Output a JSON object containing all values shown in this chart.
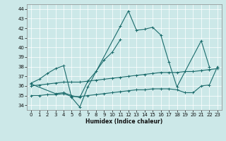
{
  "xlabel": "Humidex (Indice chaleur)",
  "bg_color": "#cce8e8",
  "line_color": "#1a6b6b",
  "xlim": [
    -0.5,
    23.5
  ],
  "ylim": [
    33.5,
    44.5
  ],
  "yticks": [
    34,
    35,
    36,
    37,
    38,
    39,
    40,
    41,
    42,
    43,
    44
  ],
  "xticks": [
    0,
    1,
    2,
    3,
    4,
    5,
    6,
    7,
    8,
    9,
    10,
    11,
    12,
    13,
    14,
    15,
    16,
    17,
    18,
    19,
    20,
    21,
    22,
    23
  ],
  "line0_x": [
    0,
    1,
    2,
    3,
    4,
    5,
    6,
    7,
    11,
    12,
    13,
    14,
    15,
    16,
    17,
    18,
    21,
    22
  ],
  "line0_y": [
    36.3,
    36.7,
    37.3,
    37.8,
    38.1,
    34.8,
    33.8,
    35.9,
    42.2,
    43.8,
    41.8,
    41.9,
    42.1,
    41.3,
    38.5,
    35.9,
    40.7,
    38.0
  ],
  "line1_x": [
    0,
    3,
    4,
    5,
    6,
    7,
    8,
    9,
    10,
    11
  ],
  "line1_y": [
    36.2,
    35.2,
    35.3,
    35.0,
    34.8,
    36.5,
    37.5,
    38.7,
    39.5,
    40.8
  ],
  "line2_x": [
    0,
    1,
    2,
    3,
    4,
    5,
    6,
    7,
    8,
    9,
    10,
    11,
    12,
    13,
    14,
    15,
    16,
    17,
    18,
    19,
    20,
    21,
    22,
    23
  ],
  "line2_y": [
    36.0,
    36.1,
    36.2,
    36.3,
    36.4,
    36.4,
    36.4,
    36.5,
    36.6,
    36.7,
    36.8,
    36.9,
    37.0,
    37.1,
    37.2,
    37.3,
    37.4,
    37.4,
    37.4,
    37.5,
    37.5,
    37.6,
    37.7,
    37.8
  ],
  "line3_x": [
    0,
    1,
    2,
    3,
    4,
    5,
    6,
    7,
    8,
    9,
    10,
    11,
    12,
    13,
    14,
    15,
    16,
    17,
    18,
    19,
    20,
    21,
    22,
    23
  ],
  "line3_y": [
    35.0,
    35.0,
    35.1,
    35.1,
    35.2,
    34.9,
    34.9,
    35.0,
    35.1,
    35.2,
    35.3,
    35.4,
    35.5,
    35.6,
    35.6,
    35.7,
    35.7,
    35.7,
    35.6,
    35.3,
    35.3,
    36.0,
    36.1,
    38.0
  ]
}
